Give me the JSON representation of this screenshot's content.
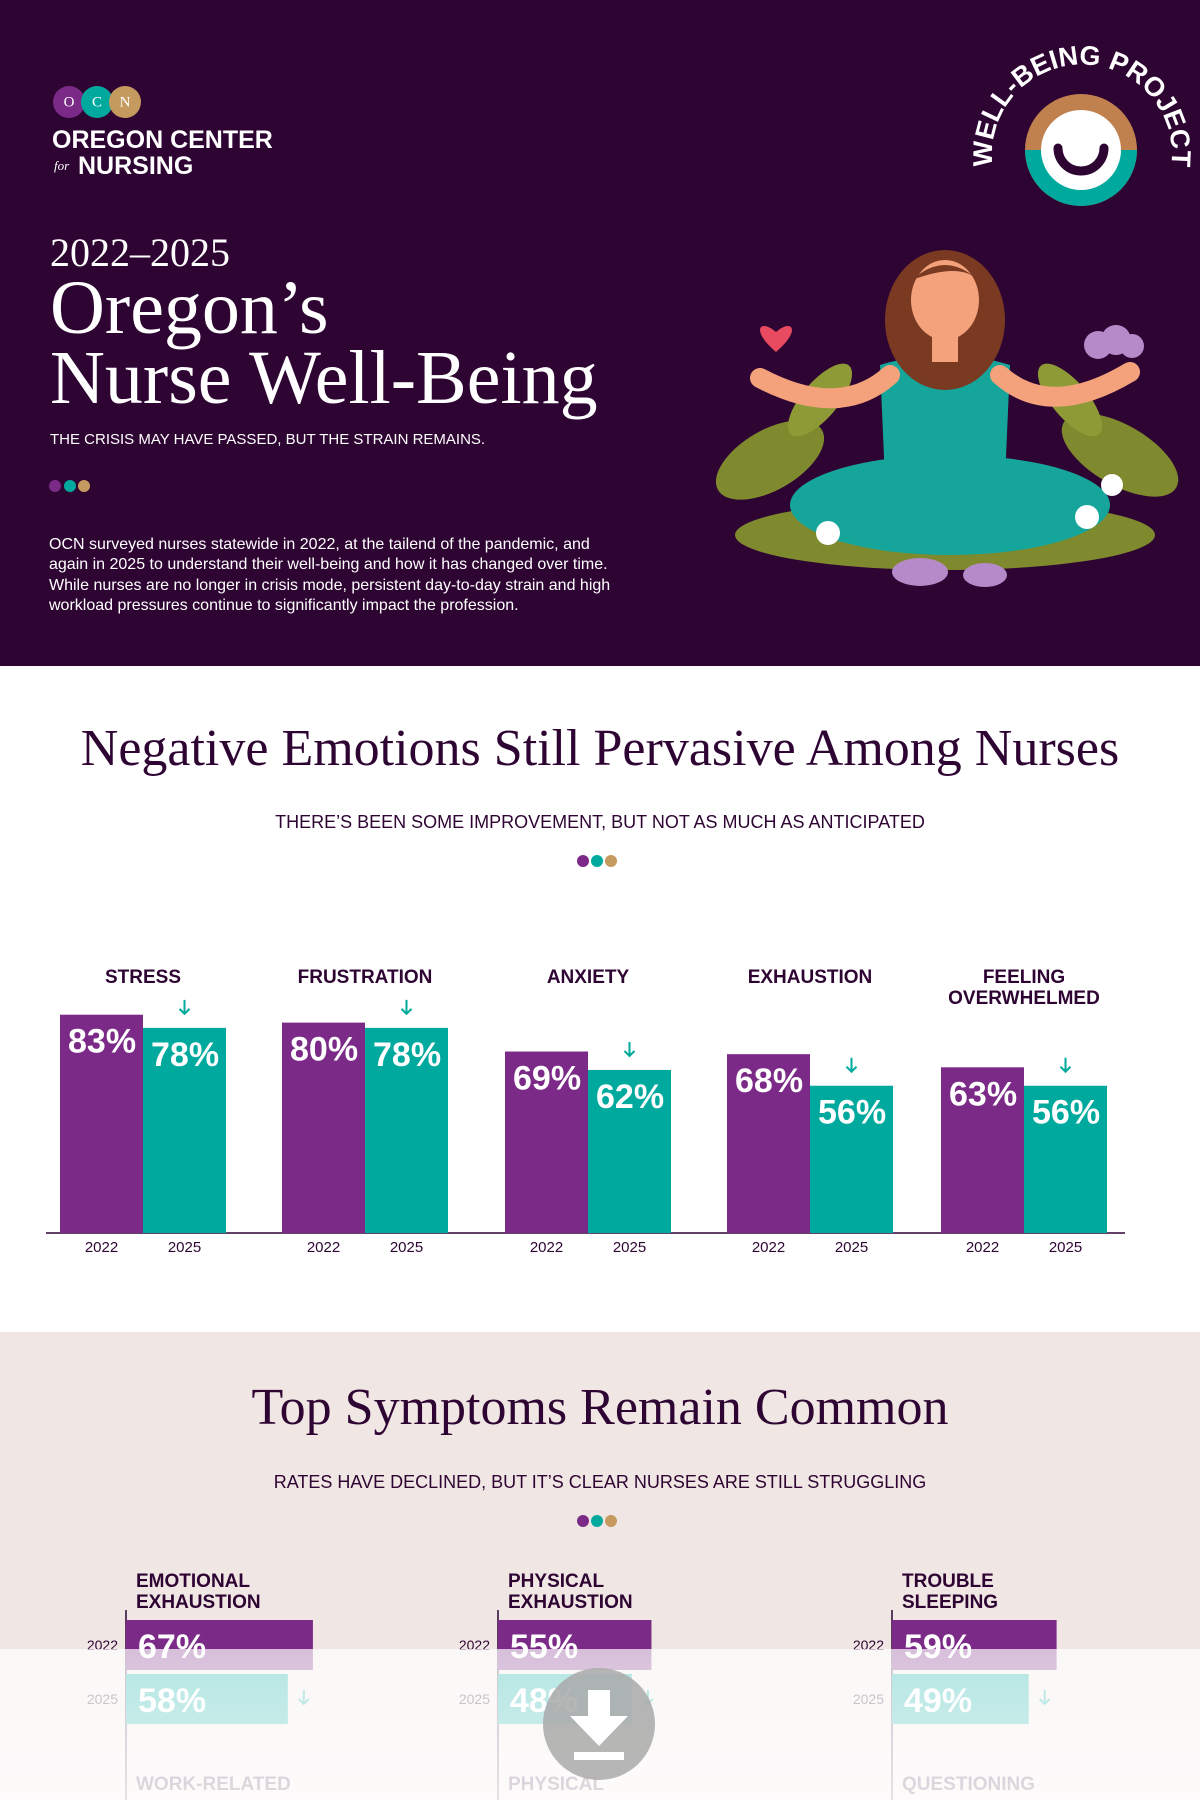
{
  "header": {
    "logo": {
      "initials": [
        "O",
        "C",
        "N"
      ],
      "line1": "OREGON CENTER",
      "for": "for",
      "line2": "NURSING"
    },
    "badge": "WELL-BEING PROJECT",
    "years": "2022–2025",
    "title": [
      "Oregon’s",
      "Nurse Well-Being"
    ],
    "tagline": "THE CRISIS MAY HAVE PASSED, BUT THE STRAIN REMAINS.",
    "intro": [
      "OCN surveyed nurses statewide in 2022, at the tailend of the pandemic, and",
      "again in 2025 to understand their well-being and how it has changed over time.",
      "While nurses are no longer in crisis mode, persistent day-to-day strain and high",
      "workload pressures continue to significantly impact the profession."
    ]
  },
  "emotions": {
    "title": "Negative Emotions Still Pervasive Among Nurses",
    "subtitle": "THERE’S BEEN SOME IMPROVEMENT, BUT NOT AS MUCH AS ANTICIPATED",
    "years": [
      "2022",
      "2025"
    ],
    "colors": [
      "#7b2a87",
      "#00a99d"
    ],
    "groups": [
      {
        "label": [
          "STRESS"
        ],
        "values": [
          83,
          78
        ],
        "value_labels": [
          "83%",
          "78%"
        ]
      },
      {
        "label": [
          "FRUSTRATION"
        ],
        "values": [
          80,
          78
        ],
        "value_labels": [
          "80%",
          "78%"
        ]
      },
      {
        "label": [
          "ANXIETY"
        ],
        "values": [
          69,
          62
        ],
        "value_labels": [
          "69%",
          "62%"
        ]
      },
      {
        "label": [
          "EXHAUSTION"
        ],
        "values": [
          68,
          56
        ],
        "value_labels": [
          "68%",
          "56%"
        ]
      },
      {
        "label": [
          "FEELING",
          "OVERWHELMED"
        ],
        "values": [
          63,
          56
        ],
        "value_labels": [
          "63%",
          "56%"
        ]
      }
    ]
  },
  "symptoms": {
    "title": "Top Symptoms Remain Common",
    "subtitle": "RATES HAVE DECLINED, BUT IT’S CLEAR NURSES ARE STILL STRUGGLING",
    "years": [
      "2022",
      "2025"
    ],
    "colors": [
      "#7b2a87",
      "#00a99d"
    ],
    "groups": [
      {
        "label": [
          "EMOTIONAL",
          "EXHAUSTION"
        ],
        "values": [
          67,
          58
        ],
        "value_labels": [
          "67%",
          "58%"
        ]
      },
      {
        "label": [
          "PHYSICAL",
          "EXHAUSTION"
        ],
        "values": [
          55,
          48
        ],
        "value_labels": [
          "55%",
          "48%"
        ]
      },
      {
        "label": [
          "TROUBLE",
          "SLEEPING"
        ],
        "values": [
          59,
          49
        ],
        "value_labels": [
          "59%",
          "49%"
        ]
      }
    ],
    "more": [
      "WORK-RELATED",
      "PHYSICAL",
      "QUESTIONING"
    ]
  }
}
